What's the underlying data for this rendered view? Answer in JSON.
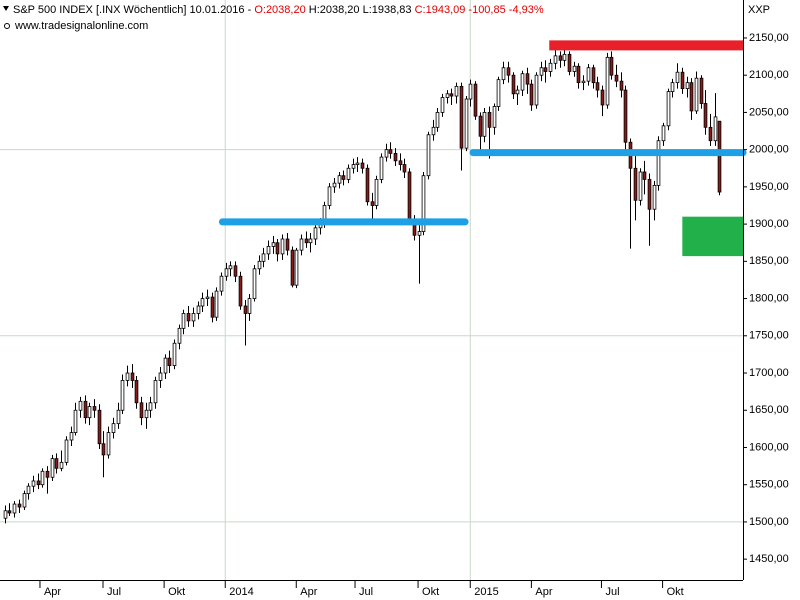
{
  "header": {
    "parts": [
      "S&P 500 INDEX [.INX  Wöchentlich] 10.01.2016 -",
      "O:2038,20",
      "H:2038,20 L:1938,83",
      "C:1943,09 -100,85 -4,93%"
    ],
    "source": "www.tradesignalonline.com",
    "symbol": "XXP"
  },
  "chart_data": {
    "type": "candlestick",
    "up_color": "#ffffff",
    "down_color": "#8b1a1a",
    "outline_color": "#000000",
    "xlim": [
      -1,
      157
    ],
    "ylim": [
      1422,
      2201
    ],
    "yticks": [
      {
        "value": 1450,
        "label": "1450,00"
      },
      {
        "value": 1500,
        "label": "1500,00"
      },
      {
        "value": 1550,
        "label": "1550,00"
      },
      {
        "value": 1600,
        "label": "1600,00"
      },
      {
        "value": 1650,
        "label": "1650,00"
      },
      {
        "value": 1700,
        "label": "1700,00"
      },
      {
        "value": 1750,
        "label": "1750,00"
      },
      {
        "value": 1800,
        "label": "1800,00"
      },
      {
        "value": 1850,
        "label": "1850,00"
      },
      {
        "value": 1900,
        "label": "1900,00"
      },
      {
        "value": 1950,
        "label": "1950,00"
      },
      {
        "value": 2000,
        "label": "2000,00"
      },
      {
        "value": 2050,
        "label": "2050,00"
      },
      {
        "value": 2100,
        "label": "2100,00"
      },
      {
        "value": 2150,
        "label": "2150,00"
      }
    ],
    "xticks": [
      {
        "value": 7.5,
        "label": "Apr"
      },
      {
        "value": 20.9,
        "label": "Jul"
      },
      {
        "value": 33.9,
        "label": "Okt"
      },
      {
        "value": 46.9,
        "label": "2014"
      },
      {
        "value": 62,
        "label": "Apr"
      },
      {
        "value": 74.5,
        "label": "Jul"
      },
      {
        "value": 87.9,
        "label": "Okt"
      },
      {
        "value": 99,
        "label": "2015"
      },
      {
        "value": 112,
        "label": "Apr"
      },
      {
        "value": 126.9,
        "label": "Jul"
      },
      {
        "value": 139.9,
        "label": "Okt"
      }
    ],
    "ygrid": [
      1500,
      1750,
      2000
    ],
    "xgrid": [
      46.9,
      99
    ],
    "grid_color": "#c8d8c8",
    "levels": [
      {
        "value": 1903,
        "from": 46.3,
        "to": 97.9,
        "color": "#1ea0e6"
      },
      {
        "value": 1996,
        "from": 99.6,
        "to": 157,
        "color": "#1ea0e6"
      },
      {
        "value": 2140,
        "from": 115.8,
        "to": 157,
        "color": "#e8202a"
      }
    ],
    "zone": {
      "from": 144.1,
      "to": 157,
      "low": 1857,
      "high": 1910,
      "color": "#22b04a"
    },
    "ohlc": [
      [
        1505,
        1522,
        1498,
        1515
      ],
      [
        1515,
        1525,
        1508,
        1512
      ],
      [
        1512,
        1528,
        1506,
        1524
      ],
      [
        1524,
        1530,
        1512,
        1520
      ],
      [
        1520,
        1542,
        1516,
        1538
      ],
      [
        1538,
        1552,
        1530,
        1548
      ],
      [
        1548,
        1562,
        1540,
        1555
      ],
      [
        1555,
        1565,
        1544,
        1550
      ],
      [
        1550,
        1572,
        1546,
        1568
      ],
      [
        1568,
        1575,
        1538,
        1560
      ],
      [
        1560,
        1590,
        1555,
        1585
      ],
      [
        1585,
        1592,
        1565,
        1572
      ],
      [
        1572,
        1596,
        1568,
        1580
      ],
      [
        1580,
        1615,
        1576,
        1610
      ],
      [
        1610,
        1628,
        1602,
        1620
      ],
      [
        1620,
        1660,
        1616,
        1650
      ],
      [
        1650,
        1668,
        1640,
        1662
      ],
      [
        1662,
        1670,
        1632,
        1640
      ],
      [
        1640,
        1660,
        1630,
        1655
      ],
      [
        1655,
        1665,
        1640,
        1650
      ],
      [
        1650,
        1658,
        1598,
        1605
      ],
      [
        1605,
        1622,
        1560,
        1590
      ],
      [
        1590,
        1628,
        1585,
        1620
      ],
      [
        1620,
        1640,
        1612,
        1632
      ],
      [
        1632,
        1660,
        1625,
        1650
      ],
      [
        1650,
        1698,
        1645,
        1690
      ],
      [
        1690,
        1710,
        1682,
        1700
      ],
      [
        1700,
        1712,
        1680,
        1690
      ],
      [
        1690,
        1696,
        1652,
        1660
      ],
      [
        1660,
        1668,
        1630,
        1640
      ],
      [
        1640,
        1660,
        1625,
        1650
      ],
      [
        1650,
        1668,
        1640,
        1660
      ],
      [
        1660,
        1695,
        1652,
        1690
      ],
      [
        1690,
        1708,
        1680,
        1700
      ],
      [
        1700,
        1725,
        1692,
        1720
      ],
      [
        1720,
        1730,
        1700,
        1710
      ],
      [
        1710,
        1745,
        1705,
        1740
      ],
      [
        1740,
        1765,
        1732,
        1760
      ],
      [
        1760,
        1785,
        1752,
        1780
      ],
      [
        1780,
        1790,
        1762,
        1770
      ],
      [
        1770,
        1788,
        1762,
        1780
      ],
      [
        1780,
        1796,
        1772,
        1790
      ],
      [
        1790,
        1808,
        1782,
        1800
      ],
      [
        1800,
        1812,
        1790,
        1802
      ],
      [
        1802,
        1808,
        1768,
        1775
      ],
      [
        1775,
        1815,
        1770,
        1810
      ],
      [
        1810,
        1835,
        1804,
        1830
      ],
      [
        1830,
        1848,
        1824,
        1840
      ],
      [
        1840,
        1850,
        1830,
        1844
      ],
      [
        1844,
        1850,
        1822,
        1830
      ],
      [
        1830,
        1836,
        1785,
        1790
      ],
      [
        1790,
        1798,
        1737,
        1780
      ],
      [
        1780,
        1806,
        1770,
        1800
      ],
      [
        1800,
        1845,
        1796,
        1840
      ],
      [
        1840,
        1858,
        1832,
        1850
      ],
      [
        1850,
        1868,
        1842,
        1860
      ],
      [
        1860,
        1878,
        1852,
        1870
      ],
      [
        1870,
        1884,
        1860,
        1875
      ],
      [
        1875,
        1880,
        1850,
        1860
      ],
      [
        1860,
        1886,
        1852,
        1880
      ],
      [
        1880,
        1888,
        1858,
        1865
      ],
      [
        1865,
        1870,
        1815,
        1818
      ],
      [
        1818,
        1868,
        1814,
        1865
      ],
      [
        1865,
        1886,
        1858,
        1880
      ],
      [
        1880,
        1890,
        1868,
        1875
      ],
      [
        1875,
        1888,
        1862,
        1880
      ],
      [
        1880,
        1900,
        1872,
        1895
      ],
      [
        1895,
        1908,
        1886,
        1900
      ],
      [
        1900,
        1930,
        1895,
        1925
      ],
      [
        1925,
        1955,
        1920,
        1950
      ],
      [
        1950,
        1962,
        1942,
        1955
      ],
      [
        1955,
        1970,
        1948,
        1965
      ],
      [
        1965,
        1972,
        1952,
        1960
      ],
      [
        1960,
        1980,
        1955,
        1975
      ],
      [
        1975,
        1988,
        1968,
        1980
      ],
      [
        1980,
        1990,
        1970,
        1982
      ],
      [
        1982,
        1988,
        1968,
        1975
      ],
      [
        1975,
        1980,
        1925,
        1930
      ],
      [
        1930,
        1942,
        1905,
        1925
      ],
      [
        1925,
        1965,
        1920,
        1960
      ],
      [
        1960,
        1995,
        1955,
        1990
      ],
      [
        1990,
        2008,
        1984,
        2000
      ],
      [
        2000,
        2010,
        1988,
        1995
      ],
      [
        1995,
        2002,
        1978,
        1985
      ],
      [
        1985,
        1995,
        1972,
        1980
      ],
      [
        1980,
        1988,
        1962,
        1970
      ],
      [
        1970,
        1975,
        1900,
        1905
      ],
      [
        1905,
        1912,
        1878,
        1885
      ],
      [
        1885,
        1900,
        1820,
        1890
      ],
      [
        1890,
        1970,
        1885,
        1965
      ],
      [
        1965,
        2024,
        1960,
        2020
      ],
      [
        2020,
        2040,
        2012,
        2030
      ],
      [
        2030,
        2056,
        2024,
        2050
      ],
      [
        2050,
        2075,
        2044,
        2070
      ],
      [
        2070,
        2080,
        2062,
        2075
      ],
      [
        2075,
        2082,
        2060,
        2072
      ],
      [
        2072,
        2090,
        2062,
        2085
      ],
      [
        2085,
        2090,
        1972,
        2002
      ],
      [
        2002,
        2072,
        1998,
        2068
      ],
      [
        2068,
        2094,
        2058,
        2088
      ],
      [
        2088,
        2092,
        2040,
        2045
      ],
      [
        2045,
        2050,
        1992,
        2018
      ],
      [
        2018,
        2056,
        2010,
        2050
      ],
      [
        2050,
        2058,
        1988,
        2030
      ],
      [
        2030,
        2062,
        2020,
        2058
      ],
      [
        2058,
        2098,
        2052,
        2094
      ],
      [
        2094,
        2118,
        2088,
        2110
      ],
      [
        2110,
        2118,
        2090,
        2100
      ],
      [
        2100,
        2104,
        2068,
        2075
      ],
      [
        2075,
        2086,
        2060,
        2080
      ],
      [
        2080,
        2106,
        2072,
        2102
      ],
      [
        2102,
        2110,
        2075,
        2088
      ],
      [
        2088,
        2094,
        2052,
        2060
      ],
      [
        2060,
        2104,
        2055,
        2100
      ],
      [
        2100,
        2118,
        2092,
        2110
      ],
      [
        2110,
        2120,
        2090,
        2105
      ],
      [
        2105,
        2122,
        2098,
        2116
      ],
      [
        2116,
        2134,
        2108,
        2126
      ],
      [
        2126,
        2132,
        2110,
        2120
      ],
      [
        2120,
        2135,
        2112,
        2128
      ],
      [
        2128,
        2132,
        2100,
        2105
      ],
      [
        2105,
        2118,
        2098,
        2112
      ],
      [
        2112,
        2116,
        2082,
        2090
      ],
      [
        2090,
        2100,
        2080,
        2092
      ],
      [
        2092,
        2115,
        2086,
        2110
      ],
      [
        2110,
        2114,
        2082,
        2090
      ],
      [
        2090,
        2098,
        2070,
        2080
      ],
      [
        2080,
        2086,
        2045,
        2060
      ],
      [
        2060,
        2130,
        2055,
        2124
      ],
      [
        2124,
        2132,
        2094,
        2100
      ],
      [
        2100,
        2114,
        2084,
        2092
      ],
      [
        2092,
        2104,
        2070,
        2080
      ],
      [
        2080,
        2086,
        2000,
        2010
      ],
      [
        2010,
        2015,
        1867,
        1975
      ],
      [
        1975,
        1992,
        1905,
        1932
      ],
      [
        1932,
        1975,
        1925,
        1970
      ],
      [
        1970,
        1985,
        1940,
        1960
      ],
      [
        1960,
        1968,
        1871,
        1920
      ],
      [
        1920,
        1958,
        1905,
        1952
      ],
      [
        1952,
        2018,
        1945,
        2012
      ],
      [
        2012,
        2036,
        2005,
        2032
      ],
      [
        2032,
        2082,
        2026,
        2078
      ],
      [
        2078,
        2095,
        2070,
        2090
      ],
      [
        2090,
        2116,
        2082,
        2104
      ],
      [
        2104,
        2110,
        2075,
        2082
      ],
      [
        2082,
        2098,
        2070,
        2090
      ],
      [
        2090,
        2096,
        2040,
        2052
      ],
      [
        2052,
        2105,
        2048,
        2096
      ],
      [
        2096,
        2100,
        2055,
        2062
      ],
      [
        2062,
        2080,
        2020,
        2030
      ],
      [
        2030,
        2048,
        2005,
        2012
      ],
      [
        2012,
        2076,
        2005,
        2044
      ],
      [
        2038.2,
        2038.2,
        1938.83,
        1943.09
      ]
    ]
  }
}
